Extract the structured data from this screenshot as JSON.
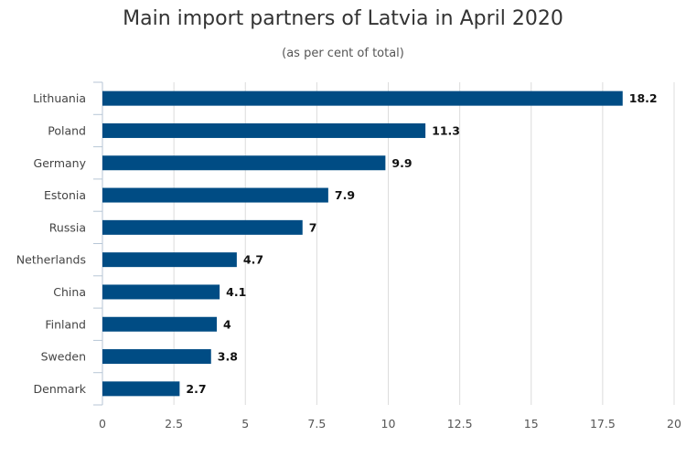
{
  "chart_data": {
    "type": "bar",
    "orientation": "horizontal",
    "title": "Main import partners of Latvia in April 2020",
    "subtitle": "(as per cent of total)",
    "categories": [
      "Lithuania",
      "Poland",
      "Germany",
      "Estonia",
      "Russia",
      "Netherlands",
      "China",
      "Finland",
      "Sweden",
      "Denmark"
    ],
    "values": [
      18.2,
      11.3,
      9.9,
      7.9,
      7,
      4.7,
      4.1,
      4,
      3.8,
      2.7
    ],
    "data_labels": [
      "18.2",
      "11.3",
      "9.9",
      "7.9",
      "7",
      "4.7",
      "4.1",
      "4",
      "3.8",
      "2.7"
    ],
    "xlim": [
      0,
      20
    ],
    "x_ticks": [
      0,
      2.5,
      5,
      7.5,
      10,
      12.5,
      15,
      17.5,
      20
    ],
    "x_tick_labels": [
      "0",
      "2.5",
      "5",
      "7.5",
      "10",
      "12.5",
      "15",
      "17.5",
      "20"
    ],
    "xlabel": "",
    "ylabel": "",
    "grid": true,
    "legend": "none",
    "colors": {
      "bar": "#004c84",
      "grid": "#dcdcdc",
      "axis": "#b7c6d6"
    }
  }
}
